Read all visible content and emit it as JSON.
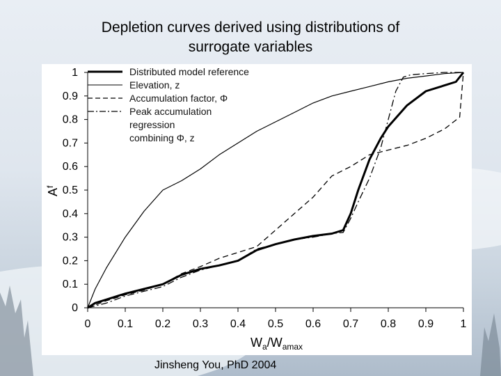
{
  "slide": {
    "title_line1": "Depletion curves derived using distributions of",
    "title_line2": "surrogate variables",
    "footer": "Jinsheng You, PhD 2004"
  },
  "chart_data": {
    "type": "line",
    "xlabel_main": "W",
    "xlabel_sub1": "a",
    "xlabel_mid": "/W",
    "xlabel_sub2": "amax",
    "ylabel_main": "A",
    "ylabel_sub": "f",
    "xlim": [
      0,
      1
    ],
    "ylim": [
      0,
      1
    ],
    "x_ticks": [
      "0",
      "0.1",
      "0.2",
      "0.3",
      "0.4",
      "0.5",
      "0.6",
      "0.7",
      "0.8",
      "0.9",
      "1"
    ],
    "y_ticks": [
      "0",
      "0.1",
      "0.2",
      "0.3",
      "0.4",
      "0.5",
      "0.6",
      "0.7",
      "0.8",
      "0.9",
      "1"
    ],
    "grid": false,
    "legend_position": "top-left",
    "legend_lines": [
      "Distributed model reference",
      "Elevation, z",
      "Accumulation factor, Φ",
      "Peak accumulation",
      "regression",
      "combining Φ, z"
    ],
    "series": [
      {
        "name": "Distributed model reference",
        "style": "solid-thick",
        "x": [
          0,
          0.02,
          0.05,
          0.08,
          0.1,
          0.15,
          0.2,
          0.25,
          0.3,
          0.35,
          0.4,
          0.45,
          0.5,
          0.55,
          0.6,
          0.65,
          0.68,
          0.7,
          0.72,
          0.75,
          0.78,
          0.8,
          0.85,
          0.9,
          0.95,
          0.98,
          1.0
        ],
        "y": [
          0,
          0.02,
          0.035,
          0.05,
          0.06,
          0.08,
          0.1,
          0.14,
          0.165,
          0.18,
          0.2,
          0.245,
          0.27,
          0.29,
          0.305,
          0.315,
          0.33,
          0.4,
          0.5,
          0.63,
          0.72,
          0.77,
          0.86,
          0.92,
          0.945,
          0.96,
          1.0
        ]
      },
      {
        "name": "Elevation, z",
        "style": "solid-thin",
        "x": [
          0,
          0.02,
          0.05,
          0.1,
          0.15,
          0.2,
          0.25,
          0.3,
          0.35,
          0.4,
          0.45,
          0.5,
          0.55,
          0.6,
          0.65,
          0.7,
          0.75,
          0.8,
          0.85,
          0.9,
          0.95,
          1.0
        ],
        "y": [
          0,
          0.08,
          0.17,
          0.3,
          0.41,
          0.5,
          0.54,
          0.59,
          0.65,
          0.7,
          0.75,
          0.79,
          0.83,
          0.87,
          0.9,
          0.92,
          0.94,
          0.96,
          0.975,
          0.985,
          0.995,
          1.0
        ]
      },
      {
        "name": "Accumulation factor, Φ",
        "style": "dashed",
        "x": [
          0,
          0.05,
          0.1,
          0.15,
          0.2,
          0.25,
          0.3,
          0.35,
          0.4,
          0.45,
          0.5,
          0.55,
          0.6,
          0.65,
          0.7,
          0.75,
          0.8,
          0.85,
          0.9,
          0.95,
          0.99,
          1.0
        ],
        "y": [
          0,
          0.03,
          0.055,
          0.075,
          0.1,
          0.145,
          0.175,
          0.21,
          0.235,
          0.26,
          0.33,
          0.4,
          0.47,
          0.56,
          0.6,
          0.65,
          0.67,
          0.69,
          0.72,
          0.76,
          0.81,
          1.0
        ]
      },
      {
        "name": "Peak accumulation regression combining Φ, z",
        "style": "dash-dot",
        "x": [
          0,
          0.05,
          0.1,
          0.15,
          0.2,
          0.25,
          0.3,
          0.35,
          0.4,
          0.45,
          0.5,
          0.55,
          0.6,
          0.65,
          0.68,
          0.7,
          0.72,
          0.75,
          0.78,
          0.8,
          0.82,
          0.84,
          0.86,
          0.9,
          0.95,
          1.0
        ],
        "y": [
          0,
          0.02,
          0.05,
          0.07,
          0.09,
          0.13,
          0.16,
          0.18,
          0.2,
          0.25,
          0.27,
          0.29,
          0.3,
          0.315,
          0.32,
          0.38,
          0.45,
          0.55,
          0.68,
          0.8,
          0.92,
          0.98,
          0.99,
          0.995,
          1.0,
          1.0
        ]
      }
    ]
  }
}
